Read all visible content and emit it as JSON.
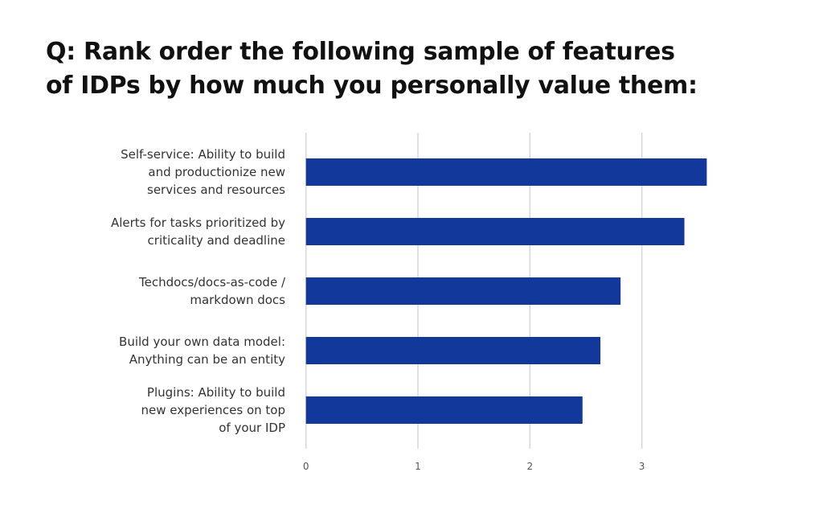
{
  "title_lines": [
    "Q: Rank order the following sample of features",
    "of IDPs by how much you personally value them:"
  ],
  "chart_data": {
    "type": "bar",
    "orientation": "horizontal",
    "categories": [
      [
        "Self-service: Ability to build",
        "and productionize new",
        "services and resources"
      ],
      [
        "Alerts for tasks prioritized by",
        "criticality and deadline"
      ],
      [
        "Techdocs/docs-as-code /",
        "markdown docs"
      ],
      [
        "Build your own data model:",
        "Anything can be an entity"
      ],
      [
        "Plugins: Ability to build",
        "new experiences on top",
        "of your IDP"
      ]
    ],
    "values": [
      3.58,
      3.38,
      2.81,
      2.63,
      2.47
    ],
    "xlim": [
      0,
      3.6
    ],
    "xticks": [
      "0",
      "1",
      "2",
      "3"
    ],
    "grid": "vertical",
    "bar_color": "#13389b",
    "title": "Q: Rank order the following sample of features of IDPs by how much you personally value them:"
  }
}
